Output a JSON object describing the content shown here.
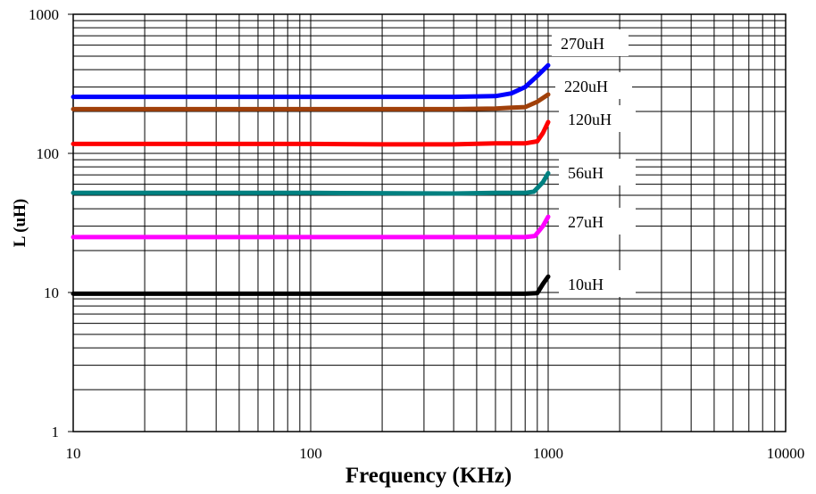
{
  "chart_data": {
    "type": "line",
    "x_scale": "log",
    "y_scale": "log",
    "xlabel": "Frequency (KHz)",
    "ylabel": "L (uH)",
    "xlim": [
      10,
      10000
    ],
    "ylim": [
      1,
      1000
    ],
    "x_ticks": [
      "10",
      "100",
      "1000",
      "10000"
    ],
    "y_ticks": [
      "1",
      "10",
      "100",
      "1000"
    ],
    "grid": true,
    "series": [
      {
        "name": "270uH",
        "color": "#0000ff",
        "x": [
          10,
          100,
          400,
          600,
          700,
          800,
          900,
          1000
        ],
        "y": [
          255,
          255,
          255,
          258,
          270,
          300,
          360,
          430
        ]
      },
      {
        "name": "220uH",
        "color": "#a0400a",
        "x": [
          10,
          100,
          400,
          600,
          700,
          800,
          900,
          1000
        ],
        "y": [
          208,
          208,
          208,
          210,
          213,
          215,
          235,
          265
        ]
      },
      {
        "name": "120uH",
        "color": "#ff0000",
        "x": [
          10,
          100,
          200,
          400,
          600,
          800,
          900,
          950,
          1000
        ],
        "y": [
          117,
          117,
          116,
          116,
          118,
          118,
          122,
          140,
          168
        ]
      },
      {
        "name": "56uH",
        "color": "#008080",
        "x": [
          10,
          100,
          400,
          600,
          800,
          870,
          950,
          1000
        ],
        "y": [
          52,
          52,
          51.5,
          52,
          52,
          53,
          62,
          72
        ]
      },
      {
        "name": "27uH",
        "color": "#ff00ff",
        "x": [
          10,
          100,
          400,
          600,
          800,
          880,
          950,
          1000
        ],
        "y": [
          25,
          25,
          25,
          25,
          25,
          25.5,
          30,
          35
        ]
      },
      {
        "name": "10uH",
        "color": "#000000",
        "x": [
          10,
          100,
          400,
          600,
          800,
          900,
          950,
          1000
        ],
        "y": [
          9.8,
          9.8,
          9.8,
          9.8,
          9.8,
          9.9,
          11.5,
          13
        ]
      }
    ]
  }
}
